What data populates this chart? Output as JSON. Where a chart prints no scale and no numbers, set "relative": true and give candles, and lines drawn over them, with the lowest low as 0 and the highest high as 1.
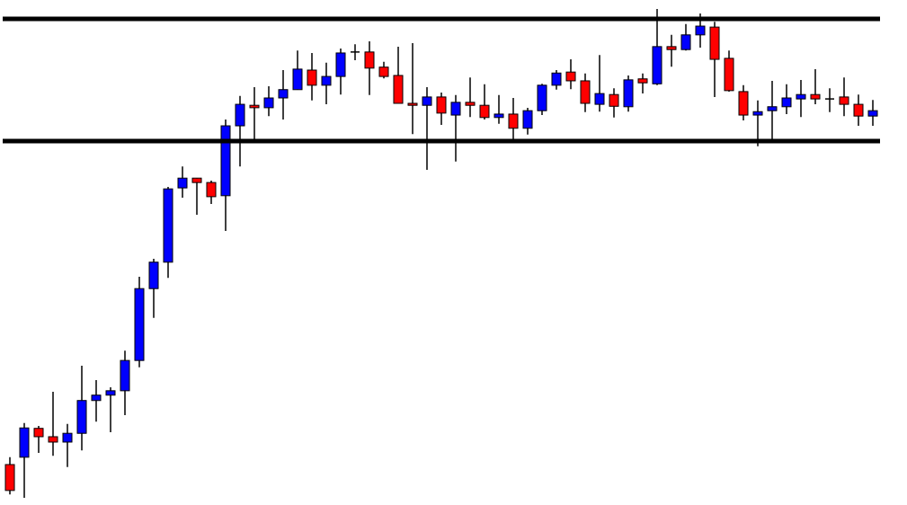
{
  "chart_data": {
    "type": "candlestick",
    "relative": true,
    "categories": [
      null,
      null,
      null,
      null,
      null,
      null,
      null,
      null,
      null,
      null,
      null,
      null,
      null,
      null,
      null,
      null,
      null,
      null,
      null,
      null,
      null,
      null,
      null,
      null,
      null,
      null,
      null,
      null,
      null,
      null,
      null,
      null,
      null,
      null,
      null,
      null,
      null,
      null,
      null,
      null,
      null,
      null,
      null,
      null,
      null,
      null,
      null,
      null,
      null,
      null,
      null,
      null,
      null,
      null,
      null,
      null,
      null,
      null,
      null,
      null,
      null
    ],
    "ohlc": [
      [
        0.068,
        0.083,
        0.007,
        0.015
      ],
      [
        0.083,
        0.153,
        0,
        0.143
      ],
      [
        0.142,
        0.147,
        0.092,
        0.125
      ],
      [
        0.125,
        0.217,
        0.086,
        0.114
      ],
      [
        0.114,
        0.151,
        0.063,
        0.132
      ],
      [
        0.132,
        0.27,
        0.097,
        0.199
      ],
      [
        0.199,
        0.241,
        0.156,
        0.21
      ],
      [
        0.21,
        0.226,
        0.134,
        0.219
      ],
      [
        0.219,
        0.301,
        0.169,
        0.281
      ],
      [
        0.281,
        0.452,
        0.267,
        0.428
      ],
      [
        0.428,
        0.489,
        0.368,
        0.482
      ],
      [
        0.482,
        0.636,
        0.45,
        0.632
      ],
      [
        0.634,
        0.678,
        0.614,
        0.654
      ],
      [
        0.654,
        0.654,
        0.579,
        0.645
      ],
      [
        0.645,
        0.649,
        0.601,
        0.616
      ],
      [
        0.618,
        0.774,
        0.546,
        0.761
      ],
      [
        0.761,
        0.822,
        0.678,
        0.805
      ],
      [
        0.803,
        0.84,
        0.733,
        0.798
      ],
      [
        0.798,
        0.842,
        0.781,
        0.818
      ],
      [
        0.818,
        0.875,
        0.774,
        0.835
      ],
      [
        0.835,
        0.915,
        0.835,
        0.877
      ],
      [
        0.875,
        0.91,
        0.813,
        0.844
      ],
      [
        0.844,
        0.89,
        0.805,
        0.862
      ],
      [
        0.862,
        0.919,
        0.825,
        0.91
      ],
      [
        0.912,
        0.928,
        0.895,
        0.912
      ],
      [
        0.912,
        0.934,
        0.824,
        0.879
      ],
      [
        0.881,
        0.892,
        0.858,
        0.862
      ],
      [
        0.864,
        0.923,
        0.807,
        0.807
      ],
      [
        0.807,
        0.93,
        0.744,
        0.803
      ],
      [
        0.803,
        0.84,
        0.671,
        0.82
      ],
      [
        0.82,
        0.829,
        0.763,
        0.787
      ],
      [
        0.783,
        0.824,
        0.688,
        0.809
      ],
      [
        0.809,
        0.86,
        0.779,
        0.803
      ],
      [
        0.803,
        0.846,
        0.774,
        0.778
      ],
      [
        0.778,
        0.824,
        0.765,
        0.785
      ],
      [
        0.785,
        0.818,
        0.733,
        0.756
      ],
      [
        0.756,
        0.798,
        0.743,
        0.792
      ],
      [
        0.792,
        0.847,
        0.783,
        0.844
      ],
      [
        0.844,
        0.875,
        0.835,
        0.869
      ],
      [
        0.871,
        0.897,
        0.836,
        0.853
      ],
      [
        0.853,
        0.868,
        0.789,
        0.807
      ],
      [
        0.805,
        0.906,
        0.79,
        0.827
      ],
      [
        0.825,
        0.838,
        0.778,
        0.801
      ],
      [
        0.8,
        0.864,
        0.79,
        0.855
      ],
      [
        0.857,
        0.868,
        0.827,
        0.849
      ],
      [
        0.847,
        1,
        0.844,
        0.923
      ],
      [
        0.923,
        0.947,
        0.882,
        0.917
      ],
      [
        0.917,
        0.969,
        0.915,
        0.947
      ],
      [
        0.947,
        0.991,
        0.921,
        0.965
      ],
      [
        0.963,
        0.974,
        0.82,
        0.897
      ],
      [
        0.899,
        0.915,
        0.831,
        0.833
      ],
      [
        0.831,
        0.844,
        0.772,
        0.783
      ],
      [
        0.783,
        0.813,
        0.719,
        0.79
      ],
      [
        0.792,
        0.853,
        0.73,
        0.8
      ],
      [
        0.8,
        0.846,
        0.785,
        0.818
      ],
      [
        0.816,
        0.855,
        0.779,
        0.825
      ],
      [
        0.825,
        0.877,
        0.805,
        0.816
      ],
      [
        0.816,
        0.838,
        0.789,
        0.816
      ],
      [
        0.82,
        0.86,
        0.781,
        0.805
      ],
      [
        0.805,
        0.825,
        0.761,
        0.781
      ],
      [
        0.781,
        0.814,
        0.761,
        0.792
      ]
    ],
    "colors": [
      "#ff0000",
      "#0000ff",
      "#ff0000",
      "#ff0000",
      "#0000ff",
      "#0000ff",
      "#0000ff",
      "#0000ff",
      "#0000ff",
      "#0000ff",
      "#0000ff",
      "#0000ff",
      "#0000ff",
      "#ff0000",
      "#ff0000",
      "#0000ff",
      "#0000ff",
      "#ff0000",
      "#0000ff",
      "#0000ff",
      "#0000ff",
      "#ff0000",
      "#0000ff",
      "#0000ff",
      "#000000",
      "#ff0000",
      "#ff0000",
      "#ff0000",
      "#ff0000",
      "#0000ff",
      "#ff0000",
      "#0000ff",
      "#ff0000",
      "#ff0000",
      "#0000ff",
      "#ff0000",
      "#0000ff",
      "#0000ff",
      "#0000ff",
      "#ff0000",
      "#ff0000",
      "#0000ff",
      "#ff0000",
      "#0000ff",
      "#ff0000",
      "#0000ff",
      "#ff0000",
      "#0000ff",
      "#0000ff",
      "#ff0000",
      "#ff0000",
      "#ff0000",
      "#0000ff",
      "#0000ff",
      "#0000ff",
      "#0000ff",
      "#ff0000",
      "#000000",
      "#ff0000",
      "#ff0000",
      "#0000ff"
    ],
    "ref_lines": [
      {
        "axis": "y",
        "value": 0.98,
        "color": "#000000"
      },
      {
        "axis": "y",
        "value": 0.73,
        "color": "#000000"
      }
    ],
    "grid": false,
    "legend": false
  }
}
